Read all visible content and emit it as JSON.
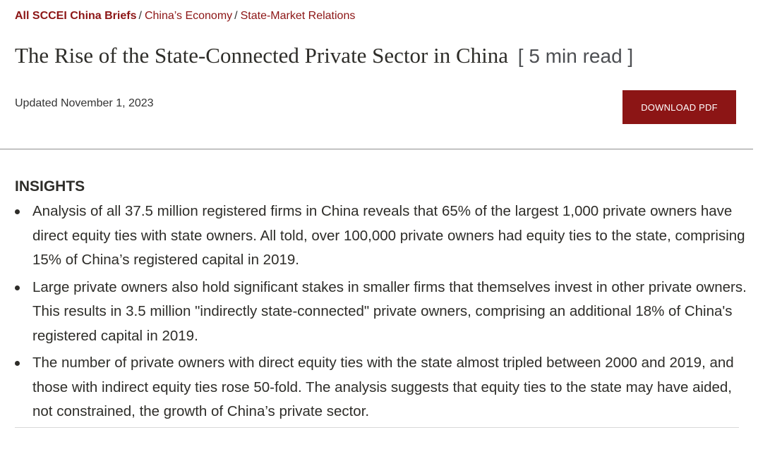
{
  "breadcrumb": {
    "root": "All SCCEI China Briefs",
    "separator": "/",
    "items": [
      "China’s Economy",
      "State-Market Relations"
    ]
  },
  "article": {
    "title": "The Rise of the State-Connected Private Sector in China",
    "read_time": "[ 5 min read ]",
    "updated": "Updated November 1, 2023"
  },
  "actions": {
    "download_label": "DOWNLOAD PDF"
  },
  "insights": {
    "heading": "INSIGHTS",
    "items": [
      "Analysis of all 37.5 million registered firms in China reveals that 65% of the largest 1,000 private owners have direct equity ties with state owners. All told, over 100,000 private owners had equity ties to the state, comprising 15% of China’s registered capital in 2019.",
      "Large private owners also hold significant stakes in smaller firms that themselves invest in other private owners. This results in 3.5 million \"indirectly state-connected\" private owners, comprising an additional 18% of China's registered capital in 2019.",
      "The number of private owners with direct equity ties with the state almost tripled between 2000 and 2019, and those with indirect equity ties rose 50-fold. The analysis suggests that equity ties to the state may have aided, not constrained, the growth of China’s private sector."
    ]
  },
  "colors": {
    "brand": "#8c1515",
    "text": "#2e2d29",
    "button_text": "#ffffff"
  }
}
